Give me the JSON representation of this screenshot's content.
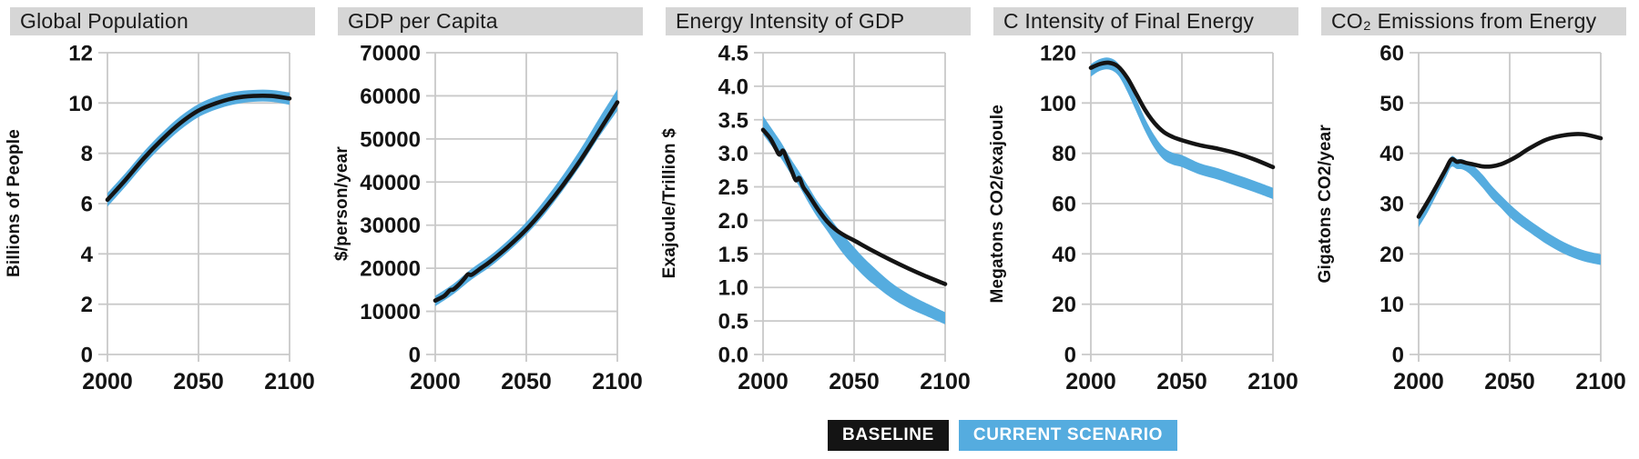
{
  "legend": {
    "baseline_label": "BASELINE",
    "current_label": "CURRENT SCENARIO",
    "baseline_color": "#141414",
    "current_color": "#55ACDF"
  },
  "colors": {
    "grid": "#c9c9c9",
    "title_bar_bg": "#d6d6d6",
    "baseline_line": "#141414",
    "scenario_band": "#55ACDF"
  },
  "chart_data": [
    {
      "type": "line",
      "title": "Global Population",
      "ylabel": "Billions of People",
      "xlim": [
        2000,
        2100
      ],
      "ylim": [
        0,
        12
      ],
      "grid": true,
      "legend_position": "bottom",
      "ytick_values": [
        0,
        2,
        4,
        6,
        8,
        10,
        12
      ],
      "ytick_labels": [
        "0",
        "2",
        "4",
        "6",
        "8",
        "10",
        "12"
      ],
      "xtick_values": [
        2000,
        2050,
        2100
      ],
      "xtick_labels": [
        "2000",
        "2050",
        "2100"
      ],
      "series": [
        {
          "name": "CURRENT SCENARIO",
          "type": "band",
          "color": "#55ACDF",
          "x": [
            2000,
            2010,
            2020,
            2030,
            2040,
            2050,
            2060,
            2070,
            2080,
            2090,
            2100
          ],
          "lo": [
            5.88,
            6.68,
            7.53,
            8.28,
            8.93,
            9.44,
            9.75,
            9.95,
            10.05,
            10.05,
            9.93
          ],
          "hi": [
            6.42,
            7.22,
            8.07,
            8.82,
            9.47,
            9.96,
            10.27,
            10.45,
            10.52,
            10.52,
            10.42
          ]
        },
        {
          "name": "BASELINE",
          "type": "line",
          "color": "#141414",
          "x": [
            2000,
            2010,
            2020,
            2030,
            2040,
            2050,
            2060,
            2070,
            2080,
            2090,
            2100
          ],
          "values": [
            6.15,
            6.95,
            7.8,
            8.55,
            9.2,
            9.7,
            10.0,
            10.2,
            10.28,
            10.28,
            10.18
          ]
        }
      ]
    },
    {
      "type": "line",
      "title": "GDP per Capita",
      "ylabel": "$/person/year",
      "xlim": [
        2000,
        2100
      ],
      "ylim": [
        0,
        70000
      ],
      "grid": true,
      "legend_position": "bottom",
      "ytick_values": [
        0,
        10000,
        20000,
        30000,
        40000,
        50000,
        60000,
        70000
      ],
      "ytick_labels": [
        "0",
        "10000",
        "20000",
        "30000",
        "40000",
        "50000",
        "60000",
        "70000"
      ],
      "xtick_values": [
        2000,
        2050,
        2100
      ],
      "xtick_labels": [
        "2000",
        "2050",
        "2100"
      ],
      "series": [
        {
          "name": "CURRENT SCENARIO",
          "type": "band",
          "color": "#55ACDF",
          "x": [
            2000,
            2010,
            2020,
            2030,
            2040,
            2050,
            2060,
            2070,
            2080,
            2090,
            2100
          ],
          "lo": [
            11200,
            14000,
            17400,
            20300,
            23800,
            27800,
            32500,
            38000,
            44000,
            50500,
            56500
          ],
          "hi": [
            13600,
            16400,
            19900,
            22900,
            26500,
            30700,
            35800,
            41500,
            47800,
            54800,
            61500
          ]
        },
        {
          "name": "BASELINE",
          "type": "line",
          "color": "#141414",
          "x": [
            2000,
            2005,
            2008,
            2010,
            2013,
            2016,
            2018,
            2020,
            2025,
            2030,
            2040,
            2050,
            2060,
            2070,
            2080,
            2090,
            2100
          ],
          "values": [
            12500,
            13600,
            14900,
            15100,
            16200,
            17600,
            18600,
            18500,
            20000,
            21500,
            25000,
            29000,
            33800,
            39200,
            45200,
            51800,
            58500
          ]
        }
      ]
    },
    {
      "type": "line",
      "title": "Energy Intensity of GDP",
      "ylabel": "Exajoule/Trillion $",
      "xlim": [
        2000,
        2100
      ],
      "ylim": [
        0,
        4.5
      ],
      "grid": true,
      "legend_position": "bottom",
      "ytick_values": [
        0,
        0.5,
        1.0,
        1.5,
        2.0,
        2.5,
        3.0,
        3.5,
        4.0,
        4.5
      ],
      "ytick_labels": [
        "0.0",
        "0.5",
        "1.0",
        "1.5",
        "2.0",
        "2.5",
        "3.0",
        "3.5",
        "4.0",
        "4.5"
      ],
      "xtick_values": [
        2000,
        2050,
        2100
      ],
      "xtick_labels": [
        "2000",
        "2050",
        "2100"
      ],
      "series": [
        {
          "name": "CURRENT SCENARIO",
          "type": "band",
          "color": "#55ACDF",
          "x": [
            2000,
            2005,
            2010,
            2015,
            2020,
            2025,
            2030,
            2035,
            2040,
            2045,
            2050,
            2055,
            2060,
            2070,
            2080,
            2090,
            2100
          ],
          "lo": [
            3.28,
            3.1,
            2.92,
            2.7,
            2.5,
            2.26,
            2.04,
            1.85,
            1.65,
            1.47,
            1.32,
            1.18,
            1.06,
            0.85,
            0.69,
            0.57,
            0.45
          ],
          "hi": [
            3.56,
            3.36,
            3.16,
            2.93,
            2.72,
            2.5,
            2.28,
            2.1,
            1.92,
            1.75,
            1.6,
            1.45,
            1.32,
            1.08,
            0.9,
            0.76,
            0.63
          ]
        },
        {
          "name": "BASELINE",
          "type": "line",
          "color": "#141414",
          "x": [
            2000,
            2004,
            2007,
            2009,
            2011,
            2013,
            2016,
            2018,
            2020,
            2022,
            2025,
            2030,
            2035,
            2040,
            2045,
            2050,
            2060,
            2070,
            2080,
            2090,
            2100
          ],
          "values": [
            3.35,
            3.22,
            3.07,
            2.98,
            3.04,
            2.92,
            2.72,
            2.6,
            2.63,
            2.5,
            2.38,
            2.17,
            1.99,
            1.86,
            1.77,
            1.7,
            1.55,
            1.41,
            1.28,
            1.16,
            1.05
          ]
        }
      ]
    },
    {
      "type": "line",
      "title": "C Intensity of Final Energy",
      "ylabel": "Megatons CO2/exajoule",
      "xlim": [
        2000,
        2100
      ],
      "ylim": [
        0,
        120
      ],
      "grid": true,
      "legend_position": "bottom",
      "ytick_values": [
        0,
        20,
        40,
        60,
        80,
        100,
        120
      ],
      "ytick_labels": [
        "0",
        "20",
        "40",
        "60",
        "80",
        "100",
        "120"
      ],
      "xtick_values": [
        2000,
        2050,
        2100
      ],
      "xtick_labels": [
        "2000",
        "2050",
        "2100"
      ],
      "series": [
        {
          "name": "CURRENT SCENARIO",
          "type": "band",
          "color": "#55ACDF",
          "x": [
            2000,
            2005,
            2010,
            2015,
            2020,
            2025,
            2030,
            2035,
            2040,
            2045,
            2050,
            2060,
            2070,
            2080,
            2090,
            2100
          ],
          "lo": [
            110.5,
            112.8,
            113.3,
            111,
            104.5,
            96.5,
            88.5,
            82,
            77.5,
            75.5,
            74.5,
            71.5,
            69.5,
            67,
            64.5,
            61.8
          ],
          "hi": [
            115.5,
            117.5,
            118,
            115.8,
            109.5,
            101.5,
            93.5,
            87,
            82.3,
            80.2,
            79.3,
            76,
            74,
            71.5,
            69,
            66.3
          ]
        },
        {
          "name": "BASELINE",
          "type": "line",
          "color": "#141414",
          "x": [
            2000,
            2005,
            2010,
            2015,
            2020,
            2025,
            2030,
            2035,
            2040,
            2045,
            2050,
            2060,
            2070,
            2080,
            2090,
            2100
          ],
          "values": [
            114,
            115.5,
            116,
            114.5,
            110,
            103.5,
            97,
            92,
            88.5,
            86.5,
            85.2,
            83.2,
            81.8,
            80,
            77.5,
            74.5
          ]
        }
      ]
    },
    {
      "type": "line",
      "title": "CO₂ Emissions from Energy",
      "ylabel": "Gigatons CO2/year",
      "xlim": [
        2000,
        2100
      ],
      "ylim": [
        0,
        60
      ],
      "grid": true,
      "legend_position": "bottom",
      "ytick_values": [
        0,
        10,
        20,
        30,
        40,
        50,
        60
      ],
      "ytick_labels": [
        "0",
        "10",
        "20",
        "30",
        "40",
        "50",
        "60"
      ],
      "xtick_values": [
        2000,
        2050,
        2100
      ],
      "xtick_labels": [
        "2000",
        "2050",
        "2100"
      ],
      "series": [
        {
          "name": "CURRENT SCENARIO",
          "type": "band",
          "color": "#55ACDF",
          "x": [
            2000,
            2005,
            2010,
            2015,
            2018,
            2021,
            2024,
            2027,
            2030,
            2035,
            2040,
            2045,
            2050,
            2055,
            2060,
            2070,
            2080,
            2090,
            2100
          ],
          "lo": [
            25.3,
            28.3,
            31.8,
            35.2,
            37.3,
            36.9,
            36.8,
            36.2,
            35.2,
            33.2,
            31.0,
            29.2,
            27.3,
            25.8,
            24.5,
            22.0,
            20.0,
            18.6,
            17.8
          ],
          "hi": [
            27.3,
            30.3,
            33.7,
            37.0,
            39.4,
            38.9,
            38.8,
            38.3,
            37.6,
            35.8,
            33.6,
            31.7,
            29.9,
            28.3,
            26.9,
            24.4,
            22.3,
            20.8,
            19.9
          ]
        },
        {
          "name": "BASELINE",
          "type": "line",
          "color": "#141414",
          "x": [
            2000,
            2005,
            2010,
            2015,
            2018,
            2021,
            2023,
            2026,
            2030,
            2035,
            2040,
            2045,
            2050,
            2055,
            2060,
            2070,
            2080,
            2090,
            2100
          ],
          "values": [
            27.4,
            30.4,
            33.6,
            36.9,
            38.8,
            38.3,
            38.4,
            38.1,
            37.8,
            37.4,
            37.4,
            37.8,
            38.6,
            39.6,
            40.8,
            42.7,
            43.6,
            43.8,
            43.0
          ]
        }
      ]
    }
  ]
}
